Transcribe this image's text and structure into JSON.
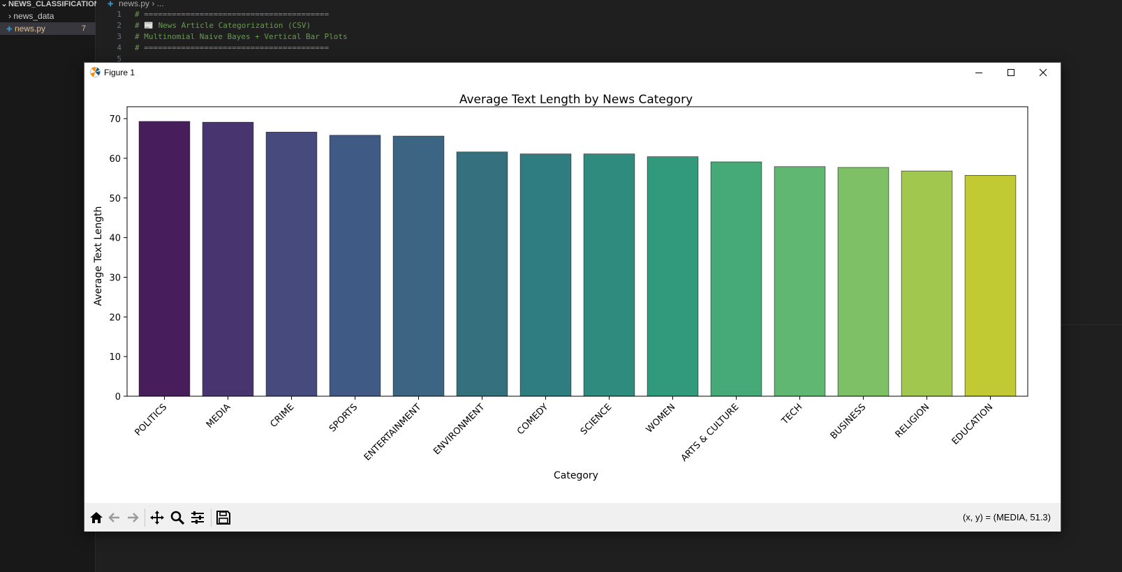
{
  "explorer": {
    "root_label": "NEWS_CLASSIFICATION",
    "folder_label": "news_data",
    "file_label": "news.py",
    "file_badge": "7"
  },
  "editor": {
    "breadcrumb_file": "news.py",
    "breadcrumb_rest": "...",
    "lines": [
      {
        "num": "1",
        "text": "# ========================================"
      },
      {
        "num": "2",
        "text": "# 📰 News Article Categorization (CSV)"
      },
      {
        "num": "3",
        "text": "# Multinomial Naive Bayes + Vertical Bar Plots"
      },
      {
        "num": "4",
        "text": "# ========================================"
      },
      {
        "num": "5",
        "text": ""
      }
    ]
  },
  "window": {
    "title": "Figure 1"
  },
  "toolbar": {
    "buttons": [
      "home-icon",
      "back-arrow-icon",
      "forward-arrow-icon",
      "pan-icon",
      "zoom-icon",
      "configure-subplots-icon",
      "save-icon"
    ],
    "coord_readout": "(x, y) = (MEDIA, 51.3)"
  },
  "colors": {
    "bar_palette": [
      "#481d5c",
      "#48346e",
      "#474a7c",
      "#3e5a85",
      "#3b6582",
      "#35707f",
      "#307d81",
      "#2e8b7e",
      "#329a7c",
      "#46a978",
      "#5fb771",
      "#7dc066",
      "#a1c74e",
      "#c2ca33"
    ]
  },
  "chart_data": {
    "type": "bar",
    "title": "Average Text Length by News Category",
    "xlabel": "Category",
    "ylabel": "Average Text Length",
    "categories": [
      "POLITICS",
      "MEDIA",
      "CRIME",
      "SPORTS",
      "ENTERTAINMENT",
      "ENVIRONMENT",
      "COMEDY",
      "SCIENCE",
      "WOMEN",
      "ARTS & CULTURE",
      "TECH",
      "BUSINESS",
      "RELIGION",
      "EDUCATION"
    ],
    "values": [
      69.3,
      69.1,
      66.6,
      65.8,
      65.6,
      61.6,
      61.1,
      61.1,
      60.4,
      59.1,
      57.9,
      57.7,
      56.8,
      55.7
    ],
    "ylim": [
      0,
      73
    ],
    "yticks": [
      0,
      10,
      20,
      30,
      40,
      50,
      60,
      70
    ],
    "grid": false
  }
}
